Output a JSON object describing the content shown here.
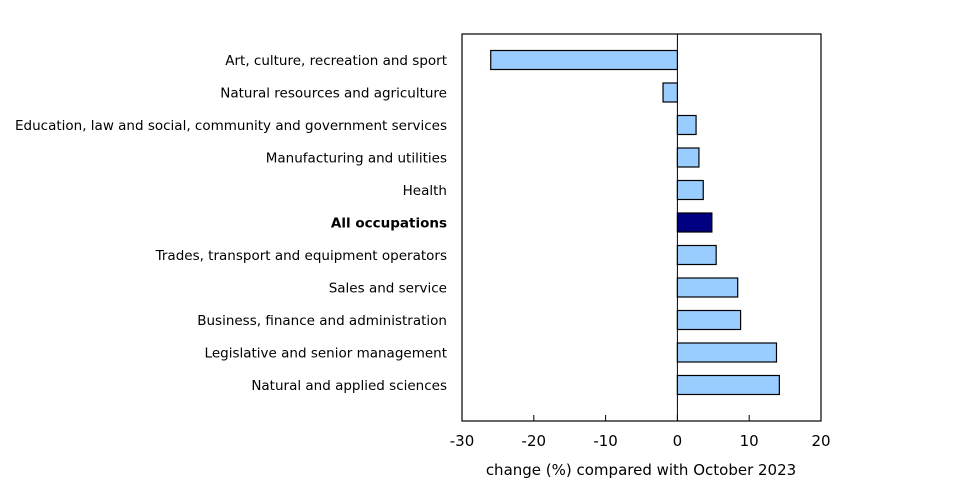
{
  "chart_data": {
    "type": "bar",
    "orientation": "horizontal",
    "categories": [
      "Art, culture, recreation and sport",
      "Natural resources and agriculture",
      "Education, law and social, community and government services",
      "Manufacturing and utilities",
      "Health",
      "All occupations",
      "Trades, transport and equipment operators",
      "Sales and service",
      "Business, finance and administration",
      "Legislative and senior management",
      "Natural and applied sciences"
    ],
    "values": [
      -26.0,
      -2.0,
      2.6,
      3.0,
      3.6,
      4.8,
      5.4,
      8.4,
      8.8,
      13.8,
      14.2
    ],
    "highlight": [
      "All occupations"
    ],
    "xlabel": "change (%) compared with October 2023",
    "ylabel": "",
    "xlim": [
      -30,
      20
    ],
    "xticks": [
      -30,
      -20,
      -10,
      0,
      10,
      20
    ],
    "grid": false,
    "colors": {
      "bar": "#99ccff",
      "highlight_bar": "#000080",
      "bar_stroke": "#000000"
    }
  }
}
